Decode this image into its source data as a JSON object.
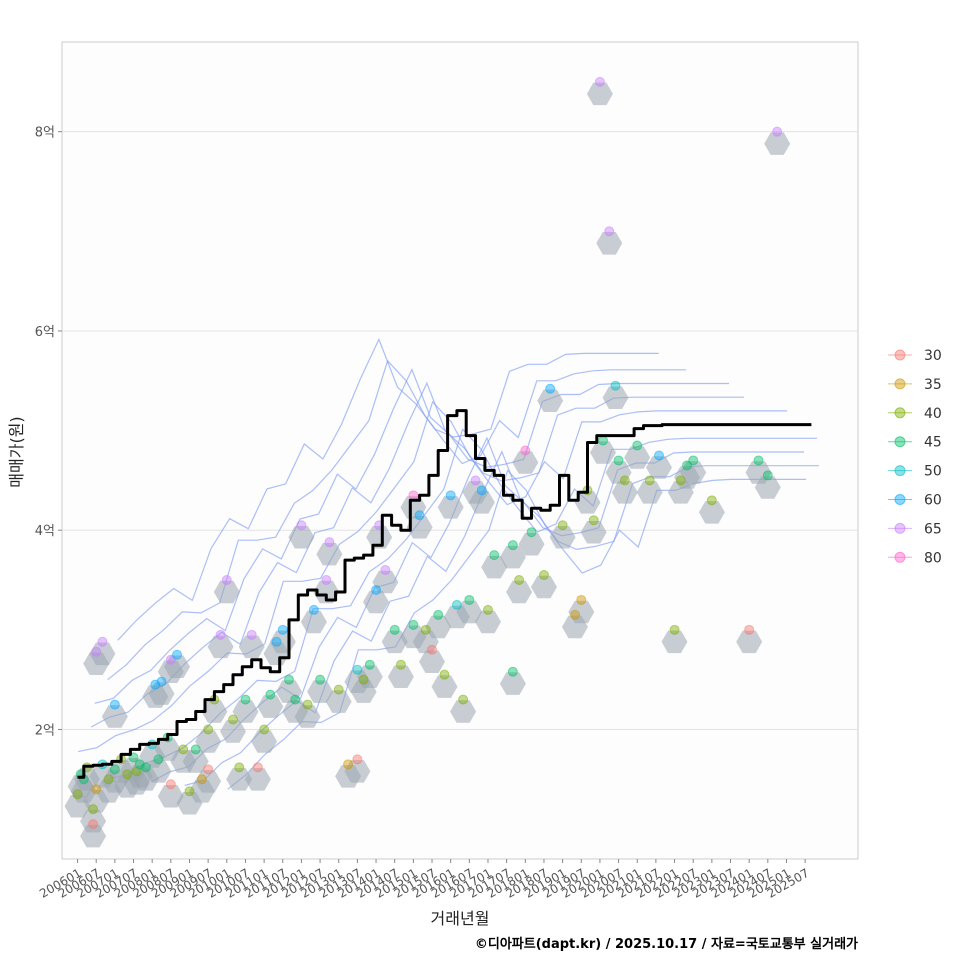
{
  "chart_data": {
    "type": "scatter",
    "xlabel": "거래년월",
    "ylabel": "매매가(원)",
    "caption": "©디아파트(dapt.kr) / 2025.10.17 / 자료=국토교통부 실거래가",
    "y_unit": "억",
    "ylim": [
      0.7,
      8.9
    ],
    "y_ticks": [
      {
        "value": 2,
        "label": "2억"
      },
      {
        "value": 4,
        "label": "4억"
      },
      {
        "value": 6,
        "label": "6억"
      },
      {
        "value": 8,
        "label": "8억"
      }
    ],
    "x_range": [
      "2005-08",
      "2026-12"
    ],
    "x_ticks": [
      "200601",
      "200607",
      "200701",
      "200707",
      "200801",
      "200807",
      "200901",
      "200907",
      "201001",
      "201007",
      "201101",
      "201107",
      "201201",
      "201207",
      "201301",
      "201307",
      "201401",
      "201407",
      "201501",
      "201507",
      "201601",
      "201607",
      "201701",
      "201707",
      "201801",
      "201807",
      "201901",
      "201907",
      "202001",
      "202007",
      "202101",
      "202107",
      "202201",
      "202207",
      "202301",
      "202307",
      "202401",
      "202407",
      "202501",
      "202507"
    ],
    "grid": true,
    "legend": {
      "position": "right",
      "title": "",
      "items": [
        {
          "label": "30",
          "color": "#F8766D"
        },
        {
          "label": "35",
          "color": "#CD9600"
        },
        {
          "label": "40",
          "color": "#7CAE00"
        },
        {
          "label": "45",
          "color": "#00BE67"
        },
        {
          "label": "50",
          "color": "#00BFC4"
        },
        {
          "label": "60",
          "color": "#00A9FF"
        },
        {
          "label": "65",
          "color": "#C77CFF"
        },
        {
          "label": "80",
          "color": "#FF61CC"
        }
      ]
    },
    "points": [
      {
        "x": "2006-01",
        "y": 1.35,
        "group": "40"
      },
      {
        "x": "2006-02",
        "y": 1.55,
        "group": "45"
      },
      {
        "x": "2006-03",
        "y": 1.5,
        "group": "45"
      },
      {
        "x": "2006-04",
        "y": 1.62,
        "group": "40"
      },
      {
        "x": "2006-06",
        "y": 1.05,
        "group": "30"
      },
      {
        "x": "2006-06",
        "y": 1.2,
        "group": "40"
      },
      {
        "x": "2006-07",
        "y": 1.4,
        "group": "35"
      },
      {
        "x": "2006-07",
        "y": 2.78,
        "group": "65"
      },
      {
        "x": "2006-09",
        "y": 2.88,
        "group": "65"
      },
      {
        "x": "2006-09",
        "y": 1.65,
        "group": "50"
      },
      {
        "x": "2006-11",
        "y": 1.5,
        "group": "40"
      },
      {
        "x": "2007-01",
        "y": 2.25,
        "group": "60"
      },
      {
        "x": "2007-01",
        "y": 1.6,
        "group": "45"
      },
      {
        "x": "2007-03",
        "y": 1.7,
        "group": "40"
      },
      {
        "x": "2007-05",
        "y": 1.55,
        "group": "40"
      },
      {
        "x": "2007-07",
        "y": 1.72,
        "group": "45"
      },
      {
        "x": "2007-08",
        "y": 1.58,
        "group": "40"
      },
      {
        "x": "2007-09",
        "y": 1.65,
        "group": "45"
      },
      {
        "x": "2007-11",
        "y": 1.62,
        "group": "45"
      },
      {
        "x": "2008-01",
        "y": 1.85,
        "group": "50"
      },
      {
        "x": "2008-02",
        "y": 2.45,
        "group": "60"
      },
      {
        "x": "2008-03",
        "y": 1.7,
        "group": "45"
      },
      {
        "x": "2008-04",
        "y": 2.48,
        "group": "60"
      },
      {
        "x": "2008-06",
        "y": 1.92,
        "group": "45"
      },
      {
        "x": "2008-07",
        "y": 1.45,
        "group": "30"
      },
      {
        "x": "2008-07",
        "y": 2.7,
        "group": "65"
      },
      {
        "x": "2008-09",
        "y": 2.75,
        "group": "60"
      },
      {
        "x": "2008-11",
        "y": 1.8,
        "group": "40"
      },
      {
        "x": "2009-01",
        "y": 1.38,
        "group": "40"
      },
      {
        "x": "2009-03",
        "y": 1.8,
        "group": "45"
      },
      {
        "x": "2009-05",
        "y": 1.5,
        "group": "35"
      },
      {
        "x": "2009-07",
        "y": 1.6,
        "group": "30"
      },
      {
        "x": "2009-07",
        "y": 2.0,
        "group": "40"
      },
      {
        "x": "2009-09",
        "y": 2.3,
        "group": "40"
      },
      {
        "x": "2009-11",
        "y": 2.95,
        "group": "65"
      },
      {
        "x": "2010-01",
        "y": 3.5,
        "group": "65"
      },
      {
        "x": "2010-03",
        "y": 2.1,
        "group": "40"
      },
      {
        "x": "2010-05",
        "y": 1.62,
        "group": "40"
      },
      {
        "x": "2010-07",
        "y": 2.3,
        "group": "45"
      },
      {
        "x": "2010-09",
        "y": 2.95,
        "group": "65"
      },
      {
        "x": "2010-11",
        "y": 1.62,
        "group": "30"
      },
      {
        "x": "2011-01",
        "y": 2.0,
        "group": "40"
      },
      {
        "x": "2011-03",
        "y": 2.35,
        "group": "45"
      },
      {
        "x": "2011-05",
        "y": 2.88,
        "group": "60"
      },
      {
        "x": "2011-07",
        "y": 3.0,
        "group": "60"
      },
      {
        "x": "2011-09",
        "y": 2.5,
        "group": "45"
      },
      {
        "x": "2011-11",
        "y": 2.3,
        "group": "45"
      },
      {
        "x": "2012-01",
        "y": 4.05,
        "group": "65"
      },
      {
        "x": "2012-03",
        "y": 2.25,
        "group": "40"
      },
      {
        "x": "2012-05",
        "y": 3.2,
        "group": "60"
      },
      {
        "x": "2012-07",
        "y": 2.5,
        "group": "45"
      },
      {
        "x": "2012-09",
        "y": 3.5,
        "group": "65"
      },
      {
        "x": "2012-10",
        "y": 3.88,
        "group": "65"
      },
      {
        "x": "2013-01",
        "y": 2.4,
        "group": "40"
      },
      {
        "x": "2013-04",
        "y": 1.65,
        "group": "35"
      },
      {
        "x": "2013-07",
        "y": 2.6,
        "group": "50"
      },
      {
        "x": "2013-07",
        "y": 1.7,
        "group": "30"
      },
      {
        "x": "2013-09",
        "y": 2.5,
        "group": "40"
      },
      {
        "x": "2013-11",
        "y": 2.65,
        "group": "45"
      },
      {
        "x": "2014-01",
        "y": 3.4,
        "group": "60"
      },
      {
        "x": "2014-02",
        "y": 4.05,
        "group": "65"
      },
      {
        "x": "2014-04",
        "y": 3.6,
        "group": "65"
      },
      {
        "x": "2014-07",
        "y": 3.0,
        "group": "45"
      },
      {
        "x": "2014-09",
        "y": 2.65,
        "group": "40"
      },
      {
        "x": "2015-01",
        "y": 4.35,
        "group": "80"
      },
      {
        "x": "2015-01",
        "y": 3.05,
        "group": "45"
      },
      {
        "x": "2015-03",
        "y": 4.15,
        "group": "60"
      },
      {
        "x": "2015-05",
        "y": 3.0,
        "group": "40"
      },
      {
        "x": "2015-07",
        "y": 2.8,
        "group": "30"
      },
      {
        "x": "2015-09",
        "y": 3.15,
        "group": "45"
      },
      {
        "x": "2015-11",
        "y": 2.55,
        "group": "40"
      },
      {
        "x": "2016-01",
        "y": 4.35,
        "group": "60"
      },
      {
        "x": "2016-03",
        "y": 3.25,
        "group": "50"
      },
      {
        "x": "2016-05",
        "y": 2.3,
        "group": "40"
      },
      {
        "x": "2016-07",
        "y": 3.3,
        "group": "45"
      },
      {
        "x": "2016-09",
        "y": 4.5,
        "group": "65"
      },
      {
        "x": "2016-11",
        "y": 4.4,
        "group": "60"
      },
      {
        "x": "2017-01",
        "y": 3.2,
        "group": "40"
      },
      {
        "x": "2017-03",
        "y": 3.75,
        "group": "45"
      },
      {
        "x": "2017-09",
        "y": 2.58,
        "group": "45"
      },
      {
        "x": "2017-09",
        "y": 3.85,
        "group": "45"
      },
      {
        "x": "2017-11",
        "y": 3.5,
        "group": "40"
      },
      {
        "x": "2018-01",
        "y": 4.8,
        "group": "80"
      },
      {
        "x": "2018-03",
        "y": 3.98,
        "group": "45"
      },
      {
        "x": "2018-07",
        "y": 3.55,
        "group": "40"
      },
      {
        "x": "2018-09",
        "y": 5.42,
        "group": "60"
      },
      {
        "x": "2019-01",
        "y": 4.05,
        "group": "40"
      },
      {
        "x": "2019-05",
        "y": 3.15,
        "group": "35"
      },
      {
        "x": "2019-07",
        "y": 3.3,
        "group": "35"
      },
      {
        "x": "2019-09",
        "y": 4.4,
        "group": "40"
      },
      {
        "x": "2019-11",
        "y": 4.1,
        "group": "40"
      },
      {
        "x": "2020-01",
        "y": 8.5,
        "group": "65"
      },
      {
        "x": "2020-02",
        "y": 4.9,
        "group": "45"
      },
      {
        "x": "2020-04",
        "y": 7.0,
        "group": "65"
      },
      {
        "x": "2020-06",
        "y": 5.45,
        "group": "50"
      },
      {
        "x": "2020-07",
        "y": 4.7,
        "group": "45"
      },
      {
        "x": "2020-09",
        "y": 4.5,
        "group": "40"
      },
      {
        "x": "2021-01",
        "y": 4.85,
        "group": "45"
      },
      {
        "x": "2021-05",
        "y": 4.5,
        "group": "40"
      },
      {
        "x": "2021-08",
        "y": 4.75,
        "group": "60"
      },
      {
        "x": "2022-01",
        "y": 3.0,
        "group": "40"
      },
      {
        "x": "2022-03",
        "y": 4.5,
        "group": "40"
      },
      {
        "x": "2022-05",
        "y": 4.65,
        "group": "45"
      },
      {
        "x": "2022-07",
        "y": 4.7,
        "group": "45"
      },
      {
        "x": "2023-01",
        "y": 4.3,
        "group": "40"
      },
      {
        "x": "2024-01",
        "y": 3.0,
        "group": "30"
      },
      {
        "x": "2024-04",
        "y": 4.7,
        "group": "45"
      },
      {
        "x": "2024-07",
        "y": 4.55,
        "group": "45"
      },
      {
        "x": "2024-10",
        "y": 8.0,
        "group": "65"
      }
    ],
    "trend_line": {
      "name": "moving average",
      "color": "#000000",
      "x": [
        "2006-01",
        "2006-03",
        "2006-06",
        "2006-09",
        "2006-12",
        "2007-03",
        "2007-06",
        "2007-09",
        "2007-12",
        "2008-03",
        "2008-06",
        "2008-09",
        "2008-12",
        "2009-03",
        "2009-06",
        "2009-09",
        "2009-12",
        "2010-03",
        "2010-06",
        "2010-09",
        "2010-12",
        "2011-03",
        "2011-06",
        "2011-09",
        "2011-12",
        "2012-03",
        "2012-06",
        "2012-09",
        "2012-12",
        "2013-03",
        "2013-06",
        "2013-09",
        "2013-12",
        "2014-03",
        "2014-06",
        "2014-09",
        "2014-12",
        "2015-03",
        "2015-06",
        "2015-09",
        "2015-12",
        "2016-03",
        "2016-06",
        "2016-09",
        "2016-12",
        "2017-03",
        "2017-06",
        "2017-09",
        "2017-12",
        "2018-03",
        "2018-06",
        "2018-09",
        "2018-12",
        "2019-03",
        "2019-06",
        "2019-09",
        "2019-12",
        "2020-03",
        "2020-06",
        "2020-09",
        "2020-12",
        "2021-03",
        "2021-06",
        "2021-09",
        "2021-12",
        "2022-03",
        "2022-06",
        "2022-09",
        "2022-12",
        "2023-03",
        "2023-06",
        "2023-09",
        "2023-12",
        "2024-03",
        "2024-06",
        "2024-09",
        "2024-12",
        "2025-03",
        "2025-06",
        "2025-09"
      ],
      "y": [
        1.52,
        1.63,
        1.64,
        1.65,
        1.68,
        1.75,
        1.8,
        1.85,
        1.86,
        1.9,
        1.95,
        2.08,
        2.1,
        2.18,
        2.3,
        2.38,
        2.45,
        2.55,
        2.63,
        2.7,
        2.62,
        2.58,
        2.72,
        3.1,
        3.35,
        3.4,
        3.35,
        3.3,
        3.38,
        3.7,
        3.72,
        3.75,
        3.85,
        4.15,
        4.05,
        4.0,
        4.3,
        4.35,
        4.55,
        4.8,
        5.15,
        5.2,
        4.95,
        4.72,
        4.6,
        4.55,
        4.35,
        4.3,
        4.12,
        4.22,
        4.2,
        4.25,
        4.55,
        4.3,
        4.38,
        4.88,
        4.95,
        4.95,
        4.95,
        4.95,
        5.02,
        5.05,
        5.05,
        5.06,
        5.06,
        5.06,
        5.06,
        5.06,
        5.06,
        5.06,
        5.06,
        5.06,
        5.06,
        5.06,
        5.06,
        5.06,
        5.06,
        5.06,
        5.06,
        5.06
      ]
    },
    "hexbin_color": "#9aa5b1",
    "density_contour_color": "#7f9cf5"
  }
}
